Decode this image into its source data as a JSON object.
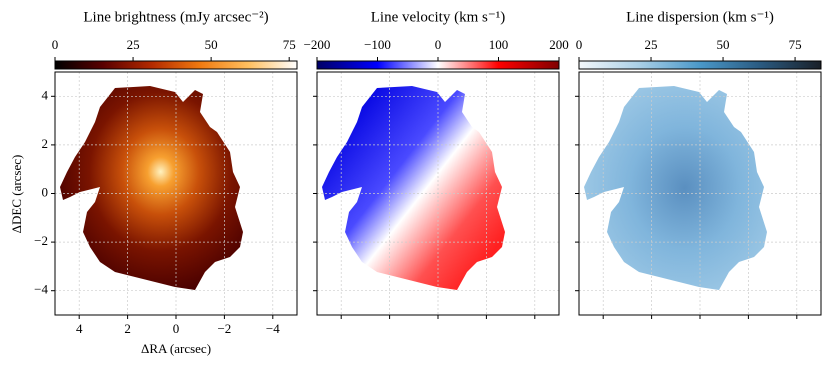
{
  "chart_data": [
    {
      "type": "image",
      "title": "Line brightness (mJy arcsec⁻²)",
      "xlabel": "ΔRA (arcsec)",
      "ylabel": "ΔDEC (arcsec)",
      "xlim": [
        5,
        -5
      ],
      "ylim": [
        -5,
        5
      ],
      "tick_labels": true,
      "xticks": [
        4,
        2,
        0,
        {
          "value": -2,
          "label": "−2"
        },
        {
          "value": -4,
          "label": "−4"
        }
      ],
      "yticks": [
        4,
        2,
        0,
        {
          "value": -2,
          "label": "−2"
        },
        {
          "value": -4,
          "label": "−4"
        }
      ],
      "clim": [
        0,
        77.5
      ],
      "cticks": [
        0,
        25,
        50,
        75
      ],
      "colormap": [
        "#000000",
        "#5a0000",
        "#b32a00",
        "#f07a10",
        "#ffc060",
        "#ffffff"
      ],
      "grid": true
    },
    {
      "type": "image",
      "title": "Line velocity (km s⁻¹)",
      "xlim": [
        5,
        -5
      ],
      "ylim": [
        -5,
        5
      ],
      "tick_labels": false,
      "xticks": [
        4,
        2,
        0,
        -2,
        -4
      ],
      "yticks": [
        4,
        2,
        0,
        -2,
        -4
      ],
      "clim": [
        -200,
        200
      ],
      "cticks": [
        {
          "value": -200,
          "label": "−200"
        },
        {
          "value": -100,
          "label": "−100"
        },
        0,
        100,
        200
      ],
      "colormap": [
        "#000066",
        "#0000ff",
        "#ffffff",
        "#ff0000",
        "#800000"
      ],
      "grid": true
    },
    {
      "type": "image",
      "title": "Line dispersion (km s⁻¹)",
      "xlim": [
        5,
        -5
      ],
      "ylim": [
        -5,
        5
      ],
      "tick_labels": false,
      "xticks": [
        4,
        2,
        0,
        -2,
        -4
      ],
      "yticks": [
        4,
        2,
        0,
        -2,
        -4
      ],
      "clim": [
        0,
        84
      ],
      "cticks": [
        0,
        25,
        50,
        75
      ],
      "colormap": [
        "#f4f8fb",
        "#a9cfe6",
        "#4a98c9",
        "#2a5a80",
        "#1a2028"
      ],
      "grid": true
    }
  ]
}
